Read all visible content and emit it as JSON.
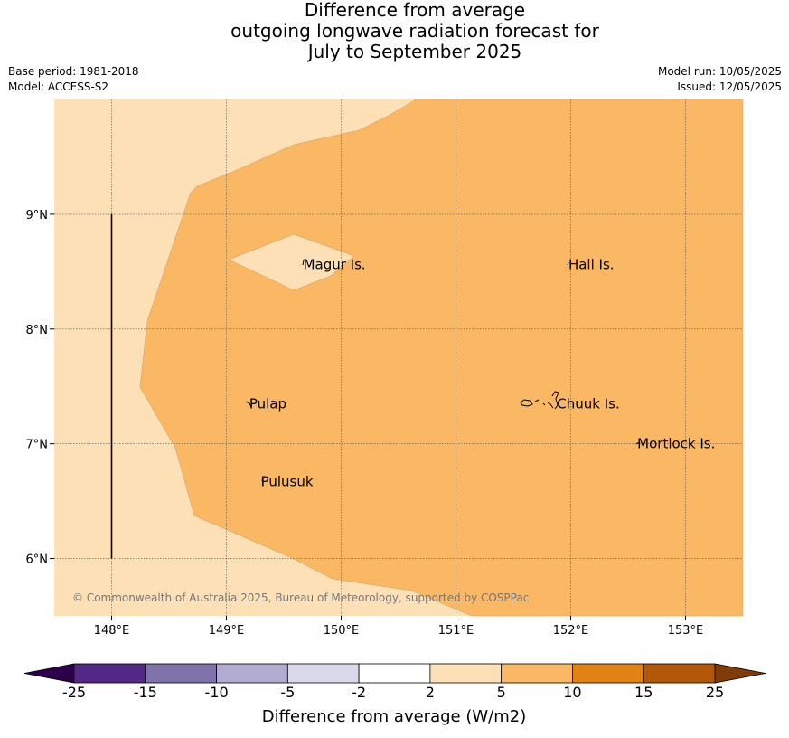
{
  "title": {
    "line1": "Difference from average",
    "line2": "outgoing longwave radiation forecast for",
    "line3": "July to September 2025"
  },
  "meta": {
    "base_period": "Base period: 1981-2018",
    "model": "Model: ACCESS-S2",
    "model_run": "Model run: 10/05/2025",
    "issued": "Issued: 12/05/2025"
  },
  "map": {
    "lon_range": [
      147.5,
      153.5
    ],
    "lat_range": [
      5.5,
      10.0
    ],
    "x_ticks": [
      {
        "value": 148,
        "label": "148°E"
      },
      {
        "value": 149,
        "label": "149°E"
      },
      {
        "value": 150,
        "label": "150°E"
      },
      {
        "value": 151,
        "label": "151°E"
      },
      {
        "value": 152,
        "label": "152°E"
      },
      {
        "value": 153,
        "label": "153°E"
      }
    ],
    "y_ticks": [
      {
        "value": 9,
        "label": "9°N"
      },
      {
        "value": 8,
        "label": "8°N"
      },
      {
        "value": 7,
        "label": "7°N"
      },
      {
        "value": 6,
        "label": "6°N"
      }
    ],
    "places": [
      {
        "name": "Magur Is.",
        "lon": 149.67,
        "lat": 8.56
      },
      {
        "name": "Hall Is.",
        "lon": 151.98,
        "lat": 8.56
      },
      {
        "name": "Pulap",
        "lon": 149.2,
        "lat": 7.35
      },
      {
        "name": "Chuuk Is.",
        "lon": 151.88,
        "lat": 7.35
      },
      {
        "name": "Mortlock Is.",
        "lon": 152.58,
        "lat": 7.0
      },
      {
        "name": "Pulusuk",
        "lon": 149.3,
        "lat": 6.67
      }
    ],
    "vertical_line": {
      "lon": 148.0,
      "lat_from": 6.0,
      "lat_to": 9.0
    },
    "colors": {
      "band_2_5": "#fde0b6",
      "band_5_10": "#fbb864"
    },
    "copyright": "© Commonwealth of Australia 2025, Bureau of Meteorology, supported by COSPPac"
  },
  "colorbar": {
    "title": "Difference from average (W/m2)",
    "ticks": [
      "-25",
      "-15",
      "-10",
      "-5",
      "-2",
      "2",
      "5",
      "10",
      "15",
      "25"
    ],
    "colors": [
      "#532886",
      "#8073ac",
      "#b2abd2",
      "#d8daeb",
      "#ffffff",
      "#fde0b6",
      "#fbb864",
      "#e08214",
      "#b35806"
    ],
    "under_color": "#2d004b",
    "over_color": "#7f3b08"
  }
}
